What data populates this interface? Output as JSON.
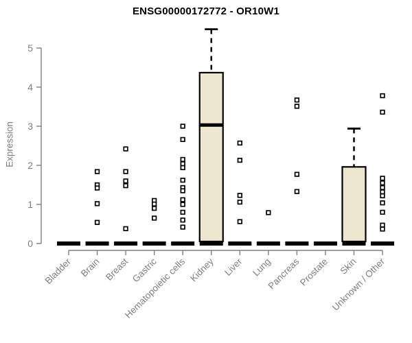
{
  "chart_data": {
    "type": "boxplot",
    "title": "ENSG00000172772 - OR10W1",
    "ylabel": "Expression",
    "xlabel": "",
    "ylim": [
      0,
      5.5
    ],
    "yticks": [
      0,
      1,
      2,
      3,
      4,
      5
    ],
    "grid": false,
    "legend": "none",
    "categories": [
      "Bladder",
      "Brain",
      "Breast",
      "Gastric",
      "Hematopoietic cells",
      "Kidney",
      "Liver",
      "Lung",
      "Pancreas",
      "Prostate",
      "Skin",
      "Unknown / Other"
    ],
    "series": [
      {
        "category": "Bladder",
        "q1": 0,
        "median": 0,
        "q3": 0,
        "whisker_low": 0,
        "whisker_high": 0,
        "outliers": []
      },
      {
        "category": "Brain",
        "q1": 0,
        "median": 0,
        "q3": 0,
        "whisker_low": 0,
        "whisker_high": 0,
        "outliers": [
          1.84,
          1.5,
          1.42,
          1.02,
          0.54
        ]
      },
      {
        "category": "Breast",
        "q1": 0,
        "median": 0,
        "q3": 0,
        "whisker_low": 0,
        "whisker_high": 0,
        "outliers": [
          2.42,
          1.84,
          1.6,
          1.48,
          0.38
        ]
      },
      {
        "category": "Gastric",
        "q1": 0,
        "median": 0,
        "q3": 0,
        "whisker_low": 0,
        "whisker_high": 0,
        "outliers": [
          1.1,
          1.01,
          0.9,
          0.65
        ]
      },
      {
        "category": "Hematopoietic cells",
        "q1": 0,
        "median": 0,
        "q3": 0,
        "whisker_low": 0,
        "whisker_high": 0,
        "outliers": [
          3.0,
          2.66,
          2.15,
          2.04,
          1.94,
          1.62,
          1.43,
          1.35,
          1.12,
          1.0,
          0.8,
          0.6,
          0.42
        ]
      },
      {
        "category": "Kidney",
        "q1": 0,
        "median": 3.03,
        "q3": 4.37,
        "whisker_low": 0,
        "whisker_high": 5.48,
        "outliers": []
      },
      {
        "category": "Liver",
        "q1": 0,
        "median": 0,
        "q3": 0,
        "whisker_low": 0,
        "whisker_high": 0,
        "outliers": [
          2.57,
          2.13,
          1.23,
          1.06,
          0.56
        ]
      },
      {
        "category": "Lung",
        "q1": 0,
        "median": 0,
        "q3": 0,
        "whisker_low": 0,
        "whisker_high": 0,
        "outliers": [
          0.79
        ]
      },
      {
        "category": "Pancreas",
        "q1": 0,
        "median": 0,
        "q3": 0,
        "whisker_low": 0,
        "whisker_high": 0,
        "outliers": [
          3.67,
          3.51,
          1.77,
          1.33
        ]
      },
      {
        "category": "Prostate",
        "q1": 0,
        "median": 0,
        "q3": 0,
        "whisker_low": 0,
        "whisker_high": 0,
        "outliers": []
      },
      {
        "category": "Skin",
        "q1": 0,
        "median": 0,
        "q3": 1.96,
        "whisker_low": 0,
        "whisker_high": 2.94,
        "outliers": []
      },
      {
        "category": "Unknown / Other",
        "q1": 0,
        "median": 0,
        "q3": 0,
        "whisker_low": 0,
        "whisker_high": 0,
        "outliers": [
          3.78,
          3.36,
          1.67,
          1.55,
          1.43,
          1.32,
          1.22,
          1.04,
          0.8,
          0.47,
          0.37
        ]
      }
    ],
    "colors": {
      "box_fill": "#ece7ce",
      "box_stroke": "#000000",
      "median": "#000000",
      "outlier_fill": "#ffffff",
      "outlier_stroke": "#000000",
      "axis": "#7e7e7e",
      "title": "#000000",
      "background": "#ffffff"
    }
  }
}
